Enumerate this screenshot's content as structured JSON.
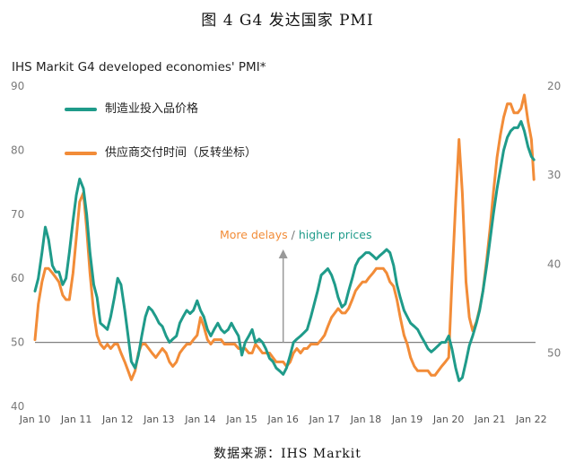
{
  "figure": {
    "title": "图 4 G4 发达国家 PMI",
    "source": "数据来源：IHS Markit"
  },
  "chart_data": {
    "type": "line",
    "title": "IHS Markit G4 developed economies' PMI*",
    "colors": {
      "input_prices": "#1f9b8a",
      "delivery_times": "#f28c38",
      "reference": "#808080",
      "arrow": "#999999"
    },
    "x_tick_labels": [
      "Jan 10",
      "Jan 11",
      "Jan 12",
      "Jan 13",
      "Jan 14",
      "Jan 15",
      "Jan 16",
      "Jan 17",
      "Jan 18",
      "Jan 19",
      "Jan 20",
      "Jan 21",
      "Jan 22"
    ],
    "x_range": [
      2010.0,
      2022.1
    ],
    "left_axis": {
      "ticks": [
        40,
        50,
        60,
        70,
        80,
        90
      ],
      "ylim": [
        40,
        90
      ]
    },
    "right_axis": {
      "ticks": [
        20,
        30,
        40,
        50
      ],
      "ylim": [
        20,
        56
      ],
      "inverted": true
    },
    "reference_line": 50,
    "annotation": {
      "part1": "More delays",
      "separator": " / ",
      "part2": "higher prices"
    },
    "legend_position": "top-left",
    "series": [
      {
        "name": "制造业投入品价格",
        "axis": "left",
        "points": [
          [
            2010.0,
            58
          ],
          [
            2010.08,
            60
          ],
          [
            2010.17,
            64
          ],
          [
            2010.25,
            68
          ],
          [
            2010.33,
            66
          ],
          [
            2010.42,
            62
          ],
          [
            2010.5,
            61
          ],
          [
            2010.58,
            61
          ],
          [
            2010.67,
            59
          ],
          [
            2010.75,
            60
          ],
          [
            2010.83,
            64
          ],
          [
            2010.92,
            69
          ],
          [
            2011.0,
            73
          ],
          [
            2011.08,
            75.5
          ],
          [
            2011.17,
            74
          ],
          [
            2011.25,
            70
          ],
          [
            2011.33,
            64
          ],
          [
            2011.42,
            59
          ],
          [
            2011.5,
            57
          ],
          [
            2011.58,
            53
          ],
          [
            2011.67,
            52.5
          ],
          [
            2011.75,
            52
          ],
          [
            2011.83,
            54
          ],
          [
            2011.92,
            57
          ],
          [
            2012.0,
            60
          ],
          [
            2012.08,
            59
          ],
          [
            2012.17,
            55
          ],
          [
            2012.25,
            51
          ],
          [
            2012.33,
            47
          ],
          [
            2012.42,
            46
          ],
          [
            2012.5,
            48
          ],
          [
            2012.58,
            51
          ],
          [
            2012.67,
            54
          ],
          [
            2012.75,
            55.5
          ],
          [
            2012.83,
            55
          ],
          [
            2012.92,
            54
          ],
          [
            2013.0,
            53
          ],
          [
            2013.08,
            52.5
          ],
          [
            2013.17,
            51
          ],
          [
            2013.25,
            50
          ],
          [
            2013.33,
            50.5
          ],
          [
            2013.42,
            51
          ],
          [
            2013.5,
            53
          ],
          [
            2013.58,
            54
          ],
          [
            2013.67,
            55
          ],
          [
            2013.75,
            54.5
          ],
          [
            2013.83,
            55
          ],
          [
            2013.92,
            56.5
          ],
          [
            2014.0,
            55
          ],
          [
            2014.08,
            54
          ],
          [
            2014.17,
            52
          ],
          [
            2014.25,
            51
          ],
          [
            2014.33,
            52
          ],
          [
            2014.42,
            53
          ],
          [
            2014.5,
            52
          ],
          [
            2014.58,
            51.5
          ],
          [
            2014.67,
            52
          ],
          [
            2014.75,
            53
          ],
          [
            2014.83,
            52
          ],
          [
            2014.92,
            51
          ],
          [
            2015.0,
            48
          ],
          [
            2015.08,
            50
          ],
          [
            2015.17,
            51
          ],
          [
            2015.25,
            52
          ],
          [
            2015.33,
            50
          ],
          [
            2015.42,
            50.5
          ],
          [
            2015.5,
            50
          ],
          [
            2015.58,
            49
          ],
          [
            2015.67,
            47.5
          ],
          [
            2015.75,
            47
          ],
          [
            2015.83,
            46
          ],
          [
            2015.92,
            45.5
          ],
          [
            2016.0,
            45
          ],
          [
            2016.08,
            46
          ],
          [
            2016.17,
            48
          ],
          [
            2016.25,
            50
          ],
          [
            2016.33,
            50.5
          ],
          [
            2016.42,
            51
          ],
          [
            2016.5,
            51.5
          ],
          [
            2016.58,
            52
          ],
          [
            2016.67,
            54
          ],
          [
            2016.75,
            56
          ],
          [
            2016.83,
            58
          ],
          [
            2016.92,
            60.5
          ],
          [
            2017.0,
            61
          ],
          [
            2017.08,
            61.5
          ],
          [
            2017.17,
            60.5
          ],
          [
            2017.25,
            59
          ],
          [
            2017.33,
            57
          ],
          [
            2017.42,
            55.5
          ],
          [
            2017.5,
            56
          ],
          [
            2017.58,
            58
          ],
          [
            2017.67,
            60
          ],
          [
            2017.75,
            62
          ],
          [
            2017.83,
            63
          ],
          [
            2017.92,
            63.5
          ],
          [
            2018.0,
            64
          ],
          [
            2018.08,
            64
          ],
          [
            2018.17,
            63.5
          ],
          [
            2018.25,
            63
          ],
          [
            2018.33,
            63.5
          ],
          [
            2018.42,
            64
          ],
          [
            2018.5,
            64.5
          ],
          [
            2018.58,
            64
          ],
          [
            2018.67,
            62
          ],
          [
            2018.75,
            59
          ],
          [
            2018.83,
            57
          ],
          [
            2018.92,
            55
          ],
          [
            2019.0,
            54
          ],
          [
            2019.08,
            53
          ],
          [
            2019.17,
            52.5
          ],
          [
            2019.25,
            52
          ],
          [
            2019.33,
            51
          ],
          [
            2019.42,
            50
          ],
          [
            2019.5,
            49
          ],
          [
            2019.58,
            48.5
          ],
          [
            2019.67,
            49
          ],
          [
            2019.75,
            49.5
          ],
          [
            2019.83,
            50
          ],
          [
            2019.92,
            50
          ],
          [
            2020.0,
            51
          ],
          [
            2020.08,
            49
          ],
          [
            2020.17,
            46
          ],
          [
            2020.25,
            44
          ],
          [
            2020.33,
            44.5
          ],
          [
            2020.42,
            47
          ],
          [
            2020.5,
            49.5
          ],
          [
            2020.58,
            51
          ],
          [
            2020.67,
            53
          ],
          [
            2020.75,
            55
          ],
          [
            2020.83,
            58
          ],
          [
            2020.92,
            62
          ],
          [
            2021.0,
            66
          ],
          [
            2021.08,
            70
          ],
          [
            2021.17,
            74
          ],
          [
            2021.25,
            77
          ],
          [
            2021.33,
            80
          ],
          [
            2021.42,
            82
          ],
          [
            2021.5,
            83
          ],
          [
            2021.58,
            83.5
          ],
          [
            2021.67,
            83.5
          ],
          [
            2021.75,
            84.5
          ],
          [
            2021.83,
            83
          ],
          [
            2021.92,
            80.5
          ],
          [
            2022.0,
            79
          ],
          [
            2022.06,
            78.5
          ]
        ]
      },
      {
        "name": "供应商交付时间（反转坐标）",
        "axis": "right",
        "points": [
          [
            2010.0,
            48.5
          ],
          [
            2010.08,
            44.5
          ],
          [
            2010.17,
            42
          ],
          [
            2010.25,
            40.5
          ],
          [
            2010.33,
            40.5
          ],
          [
            2010.42,
            41
          ],
          [
            2010.5,
            41.5
          ],
          [
            2010.58,
            42
          ],
          [
            2010.67,
            43.5
          ],
          [
            2010.75,
            44
          ],
          [
            2010.83,
            44
          ],
          [
            2010.92,
            41
          ],
          [
            2011.0,
            37
          ],
          [
            2011.08,
            33
          ],
          [
            2011.17,
            32
          ],
          [
            2011.25,
            36
          ],
          [
            2011.33,
            41
          ],
          [
            2011.42,
            45.5
          ],
          [
            2011.5,
            48
          ],
          [
            2011.58,
            49
          ],
          [
            2011.67,
            49.5
          ],
          [
            2011.75,
            49
          ],
          [
            2011.83,
            49.5
          ],
          [
            2011.92,
            49
          ],
          [
            2012.0,
            49
          ],
          [
            2012.08,
            50
          ],
          [
            2012.17,
            51
          ],
          [
            2012.25,
            52
          ],
          [
            2012.33,
            53
          ],
          [
            2012.42,
            52
          ],
          [
            2012.5,
            50
          ],
          [
            2012.58,
            49
          ],
          [
            2012.67,
            49
          ],
          [
            2012.75,
            49.5
          ],
          [
            2012.83,
            50
          ],
          [
            2012.92,
            50.5
          ],
          [
            2013.0,
            50
          ],
          [
            2013.08,
            49.5
          ],
          [
            2013.17,
            50
          ],
          [
            2013.25,
            51
          ],
          [
            2013.33,
            51.5
          ],
          [
            2013.42,
            51
          ],
          [
            2013.5,
            50
          ],
          [
            2013.58,
            49.5
          ],
          [
            2013.67,
            49
          ],
          [
            2013.75,
            49
          ],
          [
            2013.83,
            48.5
          ],
          [
            2013.92,
            48
          ],
          [
            2014.0,
            46
          ],
          [
            2014.08,
            47
          ],
          [
            2014.17,
            48.5
          ],
          [
            2014.25,
            49
          ],
          [
            2014.33,
            48.5
          ],
          [
            2014.42,
            48.5
          ],
          [
            2014.5,
            48.5
          ],
          [
            2014.58,
            49
          ],
          [
            2014.67,
            49
          ],
          [
            2014.75,
            49
          ],
          [
            2014.83,
            49
          ],
          [
            2014.92,
            49.5
          ],
          [
            2015.0,
            49.5
          ],
          [
            2015.08,
            49.5
          ],
          [
            2015.17,
            50
          ],
          [
            2015.25,
            50
          ],
          [
            2015.33,
            49
          ],
          [
            2015.42,
            49.5
          ],
          [
            2015.5,
            50
          ],
          [
            2015.58,
            50
          ],
          [
            2015.67,
            50
          ],
          [
            2015.75,
            50.5
          ],
          [
            2015.83,
            51
          ],
          [
            2015.92,
            51
          ],
          [
            2016.0,
            51
          ],
          [
            2016.08,
            51.5
          ],
          [
            2016.17,
            51
          ],
          [
            2016.25,
            50
          ],
          [
            2016.33,
            49.5
          ],
          [
            2016.42,
            50
          ],
          [
            2016.5,
            49.5
          ],
          [
            2016.58,
            49.5
          ],
          [
            2016.67,
            49
          ],
          [
            2016.75,
            49
          ],
          [
            2016.83,
            49
          ],
          [
            2016.92,
            48.5
          ],
          [
            2017.0,
            48
          ],
          [
            2017.08,
            47
          ],
          [
            2017.17,
            46
          ],
          [
            2017.25,
            45.5
          ],
          [
            2017.33,
            45
          ],
          [
            2017.42,
            45.5
          ],
          [
            2017.5,
            45.5
          ],
          [
            2017.58,
            45
          ],
          [
            2017.67,
            44
          ],
          [
            2017.75,
            43
          ],
          [
            2017.83,
            42.5
          ],
          [
            2017.92,
            42
          ],
          [
            2018.0,
            42
          ],
          [
            2018.08,
            41.5
          ],
          [
            2018.17,
            41
          ],
          [
            2018.25,
            40.5
          ],
          [
            2018.33,
            40.5
          ],
          [
            2018.42,
            40.5
          ],
          [
            2018.5,
            41
          ],
          [
            2018.58,
            42
          ],
          [
            2018.67,
            42.5
          ],
          [
            2018.75,
            44
          ],
          [
            2018.83,
            46
          ],
          [
            2018.92,
            48
          ],
          [
            2019.0,
            49
          ],
          [
            2019.08,
            50.5
          ],
          [
            2019.17,
            51.5
          ],
          [
            2019.25,
            52
          ],
          [
            2019.33,
            52
          ],
          [
            2019.42,
            52
          ],
          [
            2019.5,
            52
          ],
          [
            2019.58,
            52.5
          ],
          [
            2019.67,
            52.5
          ],
          [
            2019.75,
            52
          ],
          [
            2019.83,
            51.5
          ],
          [
            2019.92,
            51
          ],
          [
            2020.0,
            50.5
          ],
          [
            2020.08,
            42
          ],
          [
            2020.17,
            33
          ],
          [
            2020.25,
            26
          ],
          [
            2020.33,
            32
          ],
          [
            2020.42,
            42
          ],
          [
            2020.5,
            46
          ],
          [
            2020.58,
            47.5
          ],
          [
            2020.67,
            46.5
          ],
          [
            2020.75,
            45
          ],
          [
            2020.83,
            43
          ],
          [
            2020.92,
            39.5
          ],
          [
            2021.0,
            36
          ],
          [
            2021.08,
            32
          ],
          [
            2021.17,
            28
          ],
          [
            2021.25,
            25.5
          ],
          [
            2021.33,
            23.5
          ],
          [
            2021.42,
            22
          ],
          [
            2021.5,
            22
          ],
          [
            2021.58,
            23
          ],
          [
            2021.67,
            23
          ],
          [
            2021.75,
            22.5
          ],
          [
            2021.83,
            21
          ],
          [
            2021.92,
            24
          ],
          [
            2022.0,
            26
          ],
          [
            2022.06,
            30.5
          ]
        ]
      }
    ]
  }
}
